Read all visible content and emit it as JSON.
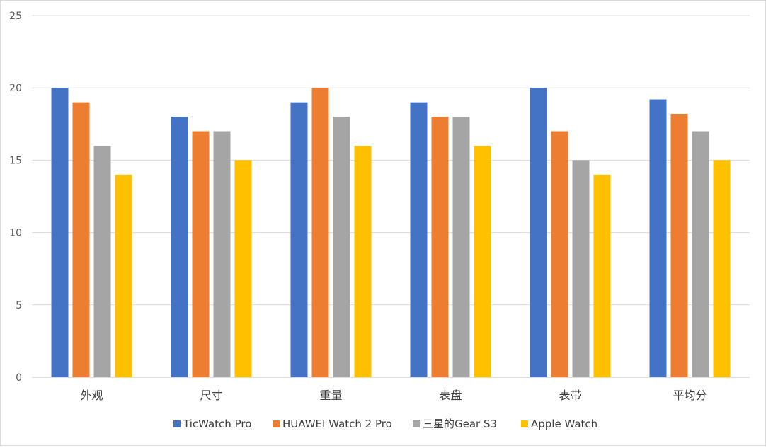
{
  "chart_data": {
    "type": "bar",
    "categories": [
      "外观",
      "尺寸",
      "重量",
      "表盘",
      "表带",
      "平均分"
    ],
    "series": [
      {
        "name": "TicWatch Pro",
        "color": "#4472C4",
        "values": [
          20,
          18,
          19,
          19,
          20,
          19.2
        ]
      },
      {
        "name": "HUAWEI Watch 2 Pro",
        "color": "#ED7D31",
        "values": [
          19,
          17,
          20,
          18,
          17,
          18.2
        ]
      },
      {
        "name": "三星的Gear S3",
        "color": "#A5A5A5",
        "values": [
          16,
          17,
          18,
          18,
          15,
          17
        ]
      },
      {
        "name": "Apple Watch",
        "color": "#FFC000",
        "values": [
          14,
          15,
          16,
          16,
          14,
          15
        ]
      }
    ],
    "ylim": [
      0,
      25
    ],
    "yticks": [
      0,
      5,
      10,
      15,
      20,
      25
    ],
    "grid": true,
    "legend_position": "bottom",
    "title": "",
    "xlabel": "",
    "ylabel": ""
  }
}
